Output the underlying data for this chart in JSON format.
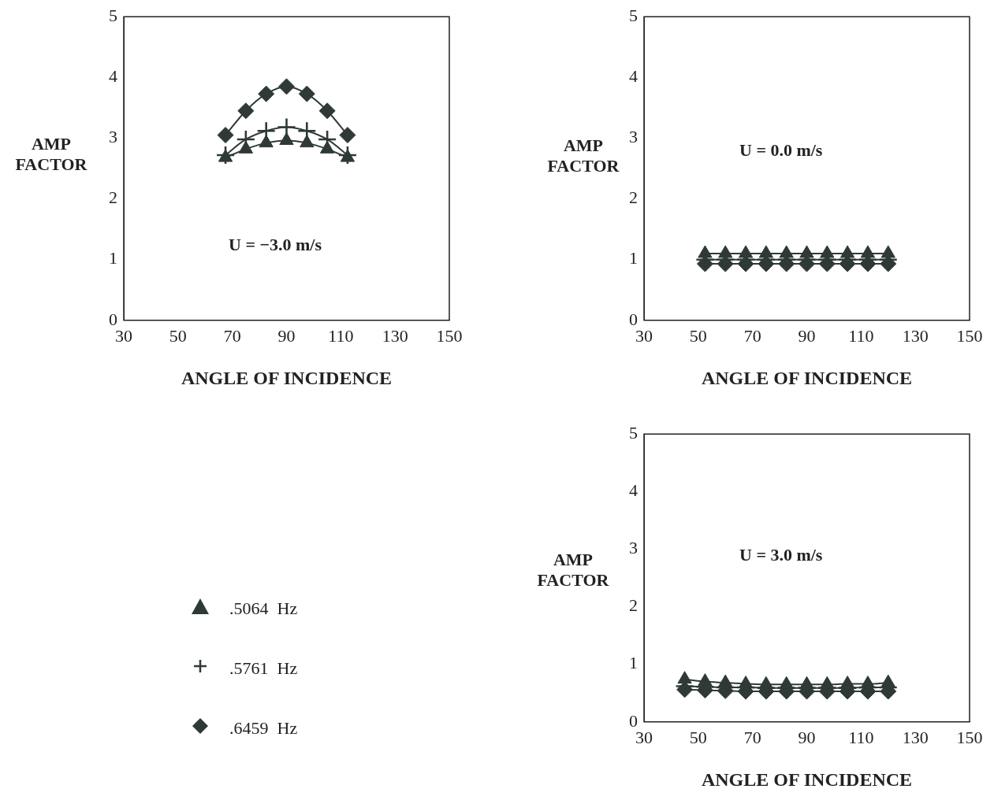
{
  "chart_data": [
    {
      "type": "line",
      "xlabel": "ANGLE OF INCIDENCE",
      "ylabel": "AMP FACTOR",
      "xlim": [
        30,
        150
      ],
      "xticks": [
        30,
        50,
        70,
        90,
        110,
        130,
        150
      ],
      "ylim": [
        0,
        5
      ],
      "yticks": [
        0,
        1,
        2,
        3,
        4,
        5
      ],
      "grid": false,
      "legend": "bottom",
      "annotations": [
        "U = −3.0 m/s"
      ],
      "x": [
        67.5,
        75,
        82.5,
        90,
        97.5,
        105,
        112.5
      ],
      "series": [
        {
          "name": ".5064  Hz",
          "color": "#2f3a36",
          "marker": "triangle",
          "values": [
            2.68,
            2.82,
            2.92,
            2.96,
            2.92,
            2.82,
            2.68
          ]
        },
        {
          "name": ".5761  Hz",
          "color": "#2f3a36",
          "marker": "cross",
          "values": [
            2.72,
            2.98,
            3.12,
            3.18,
            3.12,
            2.98,
            2.72
          ]
        },
        {
          "name": ".6459  Hz",
          "color": "#2f3a36",
          "marker": "diamond",
          "values": [
            3.05,
            3.45,
            3.73,
            3.85,
            3.73,
            3.45,
            3.05
          ]
        }
      ]
    },
    {
      "type": "line",
      "xlabel": "ANGLE OF INCIDENCE",
      "ylabel": "AMP FACTOR",
      "xlim": [
        30,
        150
      ],
      "xticks": [
        30,
        50,
        70,
        90,
        110,
        130,
        150
      ],
      "ylim": [
        0,
        5
      ],
      "yticks": [
        0,
        1,
        2,
        3,
        4,
        5
      ],
      "grid": false,
      "annotations": [
        "U = 0.0 m/s"
      ],
      "x": [
        52.5,
        60,
        67.5,
        75,
        82.5,
        90,
        97.5,
        105,
        112.5,
        120
      ],
      "series": [
        {
          "color": "#2f3a36",
          "marker": "triangle",
          "values": [
            1.1,
            1.1,
            1.1,
            1.1,
            1.1,
            1.1,
            1.1,
            1.1,
            1.1,
            1.1
          ]
        },
        {
          "color": "#2f3a36",
          "marker": "cross",
          "values": [
            1.0,
            1.0,
            1.0,
            1.0,
            1.0,
            1.0,
            1.0,
            1.0,
            1.0,
            1.0
          ]
        },
        {
          "color": "#2f3a36",
          "marker": "diamond",
          "values": [
            0.93,
            0.93,
            0.93,
            0.93,
            0.93,
            0.93,
            0.93,
            0.93,
            0.93,
            0.93
          ]
        }
      ]
    },
    {
      "type": "line",
      "xlabel": "ANGLE OF INCIDENCE",
      "ylabel": "AMP FACTOR",
      "xlim": [
        30,
        150
      ],
      "xticks": [
        30,
        50,
        70,
        90,
        110,
        130,
        150
      ],
      "ylim": [
        0,
        5
      ],
      "yticks": [
        0,
        1,
        2,
        3,
        4,
        5
      ],
      "grid": false,
      "annotations": [
        "U = 3.0 m/s"
      ],
      "x": [
        45,
        52.5,
        60,
        67.5,
        75,
        82.5,
        90,
        97.5,
        105,
        112.5,
        120
      ],
      "series": [
        {
          "color": "#2f3a36",
          "marker": "triangle",
          "values": [
            0.74,
            0.7,
            0.68,
            0.66,
            0.65,
            0.65,
            0.65,
            0.65,
            0.66,
            0.66,
            0.68
          ]
        },
        {
          "color": "#2f3a36",
          "marker": "cross",
          "values": [
            0.62,
            0.61,
            0.6,
            0.6,
            0.59,
            0.59,
            0.59,
            0.59,
            0.59,
            0.6,
            0.6
          ]
        },
        {
          "color": "#2f3a36",
          "marker": "diamond",
          "values": [
            0.56,
            0.55,
            0.54,
            0.53,
            0.53,
            0.53,
            0.53,
            0.53,
            0.53,
            0.53,
            0.53
          ]
        }
      ]
    }
  ]
}
